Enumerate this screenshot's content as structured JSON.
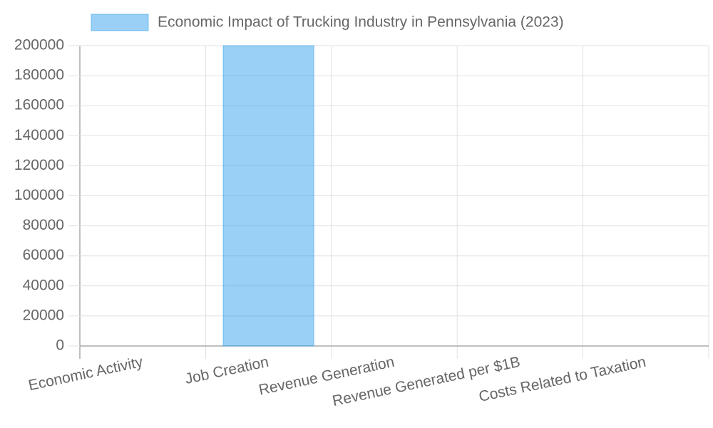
{
  "chart_data": {
    "type": "bar",
    "categories": [
      "Economic Activity",
      "Job Creation",
      "Revenue Generation",
      "Revenue Generated per $1B",
      "Costs Related to Taxation"
    ],
    "series": [
      {
        "name": "Economic Impact of Trucking Industry in Pennsylvania (2023)",
        "color": "rgba(54,162,235,0.5)",
        "values": [
          0,
          200000,
          0,
          0,
          0
        ]
      }
    ],
    "ylim": [
      0,
      200000
    ],
    "yticks": [
      0,
      20000,
      40000,
      60000,
      80000,
      100000,
      120000,
      140000,
      160000,
      180000,
      200000
    ],
    "grid": true
  }
}
